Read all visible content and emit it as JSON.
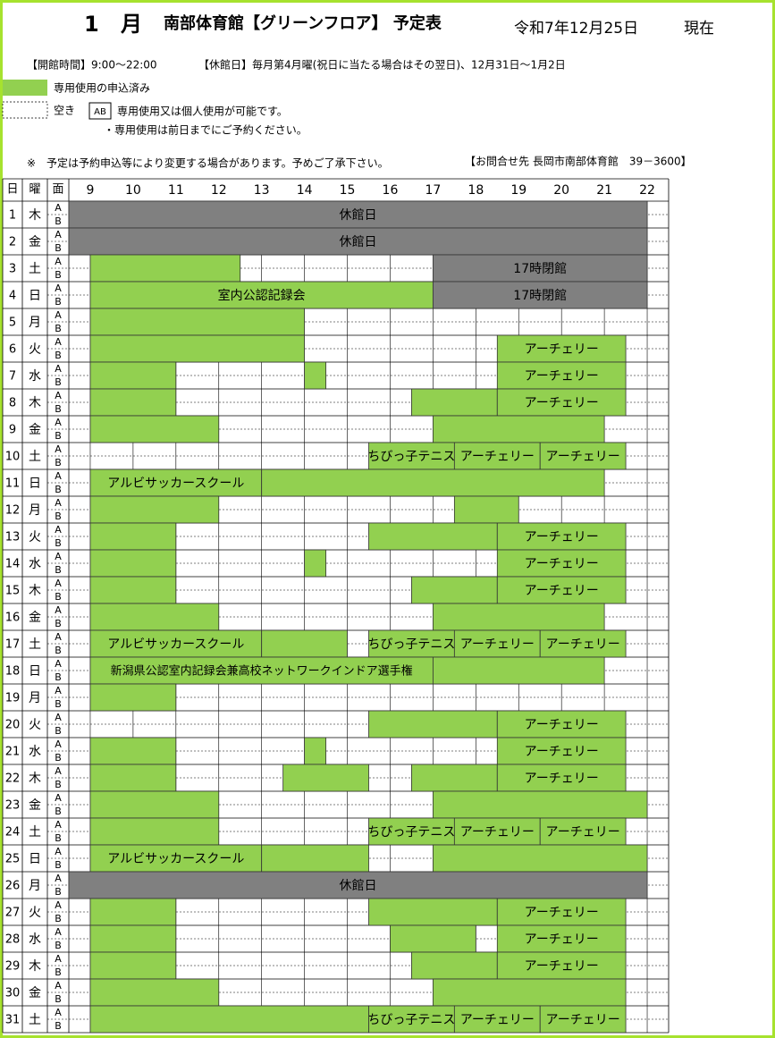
{
  "header": {
    "month": "1",
    "month_unit": "月",
    "title": "南部体育館【グリーンフロア】 予定表",
    "date": "令和7年12月25日",
    "as_of": "現在",
    "hours_info": "【開館時間】9:00～22:00",
    "closed_info": "【休館日】毎月第4月曜(祝日に当たる場合はその翌日)、12月31日～1月2日"
  },
  "legend": {
    "booked": "専用使用の申込済み",
    "free": "空き",
    "ab": "AB",
    "ab_text": "専用使用又は個人使用が可能です。",
    "reserve_note": "・専用使用は前日までにご予約ください。"
  },
  "note": "※　予定は予約申込等により変更する場合があります。予めご了承下さい。",
  "contact": "【お問合せ先 長岡市南部体育館　39－3600】",
  "table": {
    "col_day": "日",
    "col_weekday": "曜",
    "col_court": "面",
    "courts": [
      "A",
      "B"
    ],
    "hours": [
      9,
      10,
      11,
      12,
      13,
      14,
      15,
      16,
      17,
      18,
      19,
      20,
      21,
      22
    ],
    "xlim": [
      8.5,
      22.5
    ],
    "booked_color": "#92d050",
    "closed_color": "#808080",
    "days": [
      {
        "day": 1,
        "weekday": "木",
        "blocks": [
          {
            "start": 8.5,
            "end": 22,
            "label": "休館日",
            "closed": true
          }
        ]
      },
      {
        "day": 2,
        "weekday": "金",
        "blocks": [
          {
            "start": 8.5,
            "end": 22,
            "label": "休館日",
            "closed": true
          }
        ]
      },
      {
        "day": 3,
        "weekday": "土",
        "blocks": [
          {
            "start": 9,
            "end": 12.5
          },
          {
            "start": 17,
            "end": 22,
            "label": "17時閉館",
            "closed": true
          }
        ]
      },
      {
        "day": 4,
        "weekday": "日",
        "blocks": [
          {
            "start": 9,
            "end": 17,
            "label": "室内公認記録会"
          },
          {
            "start": 17,
            "end": 22,
            "label": "17時閉館",
            "closed": true
          }
        ]
      },
      {
        "day": 5,
        "weekday": "月",
        "blocks": [
          {
            "start": 9,
            "end": 14
          }
        ]
      },
      {
        "day": 6,
        "weekday": "火",
        "blocks": [
          {
            "start": 9,
            "end": 14
          },
          {
            "start": 18.5,
            "end": 21.5,
            "label": "アーチェリー"
          }
        ]
      },
      {
        "day": 7,
        "weekday": "水",
        "blocks": [
          {
            "start": 9,
            "end": 11
          },
          {
            "start": 14,
            "end": 14.5
          },
          {
            "start": 18.5,
            "end": 21.5,
            "label": "アーチェリー"
          }
        ]
      },
      {
        "day": 8,
        "weekday": "木",
        "blocks": [
          {
            "start": 9,
            "end": 11
          },
          {
            "start": 16.5,
            "end": 18.5
          },
          {
            "start": 18.5,
            "end": 21.5,
            "label": "アーチェリー"
          }
        ]
      },
      {
        "day": 9,
        "weekday": "金",
        "blocks": [
          {
            "start": 9,
            "end": 12
          },
          {
            "start": 17,
            "end": 21
          }
        ]
      },
      {
        "day": 10,
        "weekday": "土",
        "blocks": [
          {
            "start": 15.5,
            "end": 17.5,
            "label": "ちびっ子テニス"
          },
          {
            "start": 17.5,
            "end": 19.5,
            "label": "アーチェリー"
          },
          {
            "start": 19.5,
            "end": 21.5,
            "label": "アーチェリー"
          }
        ]
      },
      {
        "day": 11,
        "weekday": "日",
        "blocks": [
          {
            "start": 9,
            "end": 13,
            "label": "アルビサッカースクール"
          },
          {
            "start": 13,
            "end": 21
          }
        ]
      },
      {
        "day": 12,
        "weekday": "月",
        "blocks": [
          {
            "start": 9,
            "end": 12
          },
          {
            "start": 17.5,
            "end": 19
          }
        ]
      },
      {
        "day": 13,
        "weekday": "火",
        "blocks": [
          {
            "start": 9,
            "end": 11
          },
          {
            "start": 15.5,
            "end": 18.5
          },
          {
            "start": 18.5,
            "end": 21.5,
            "label": "アーチェリー"
          }
        ]
      },
      {
        "day": 14,
        "weekday": "水",
        "blocks": [
          {
            "start": 9,
            "end": 11
          },
          {
            "start": 14,
            "end": 14.5
          },
          {
            "start": 18.5,
            "end": 21.5,
            "label": "アーチェリー"
          }
        ]
      },
      {
        "day": 15,
        "weekday": "木",
        "blocks": [
          {
            "start": 9,
            "end": 11
          },
          {
            "start": 16.5,
            "end": 18.5
          },
          {
            "start": 18.5,
            "end": 21.5,
            "label": "アーチェリー"
          }
        ]
      },
      {
        "day": 16,
        "weekday": "金",
        "blocks": [
          {
            "start": 9,
            "end": 12
          },
          {
            "start": 17,
            "end": 21
          }
        ]
      },
      {
        "day": 17,
        "weekday": "土",
        "blocks": [
          {
            "start": 9,
            "end": 13,
            "label": "アルビサッカースクール"
          },
          {
            "start": 13,
            "end": 15
          },
          {
            "start": 15.5,
            "end": 17.5,
            "label": "ちびっ子テニス"
          },
          {
            "start": 17.5,
            "end": 19.5,
            "label": "アーチェリー"
          },
          {
            "start": 19.5,
            "end": 21.5,
            "label": "アーチェリー"
          }
        ]
      },
      {
        "day": 18,
        "weekday": "日",
        "blocks": [
          {
            "start": 9,
            "end": 17,
            "label": "新潟県公認室内記録会兼高校ネットワークインドア選手権"
          },
          {
            "start": 17,
            "end": 21
          }
        ]
      },
      {
        "day": 19,
        "weekday": "月",
        "blocks": [
          {
            "start": 9,
            "end": 11
          }
        ]
      },
      {
        "day": 20,
        "weekday": "火",
        "blocks": [
          {
            "start": 15.5,
            "end": 18.5
          },
          {
            "start": 18.5,
            "end": 21.5,
            "label": "アーチェリー"
          }
        ]
      },
      {
        "day": 21,
        "weekday": "水",
        "blocks": [
          {
            "start": 9,
            "end": 11
          },
          {
            "start": 14,
            "end": 14.5
          },
          {
            "start": 18.5,
            "end": 21.5,
            "label": "アーチェリー"
          }
        ]
      },
      {
        "day": 22,
        "weekday": "木",
        "blocks": [
          {
            "start": 9,
            "end": 11
          },
          {
            "start": 13.5,
            "end": 15.5
          },
          {
            "start": 16.5,
            "end": 18.5
          },
          {
            "start": 18.5,
            "end": 21.5,
            "label": "アーチェリー"
          }
        ]
      },
      {
        "day": 23,
        "weekday": "金",
        "blocks": [
          {
            "start": 9,
            "end": 12
          },
          {
            "start": 17,
            "end": 22
          }
        ]
      },
      {
        "day": 24,
        "weekday": "土",
        "blocks": [
          {
            "start": 9,
            "end": 12
          },
          {
            "start": 15.5,
            "end": 17.5,
            "label": "ちびっ子テニス"
          },
          {
            "start": 17.5,
            "end": 19.5,
            "label": "アーチェリー"
          },
          {
            "start": 19.5,
            "end": 21.5,
            "label": "アーチェリー"
          }
        ]
      },
      {
        "day": 25,
        "weekday": "日",
        "blocks": [
          {
            "start": 9,
            "end": 13,
            "label": "アルビサッカースクール"
          },
          {
            "start": 13,
            "end": 15.5
          },
          {
            "start": 17,
            "end": 22
          }
        ]
      },
      {
        "day": 26,
        "weekday": "月",
        "blocks": [
          {
            "start": 8.5,
            "end": 22,
            "label": "休館日",
            "closed": true
          }
        ]
      },
      {
        "day": 27,
        "weekday": "火",
        "blocks": [
          {
            "start": 9,
            "end": 11
          },
          {
            "start": 15.5,
            "end": 18.5
          },
          {
            "start": 18.5,
            "end": 21.5,
            "label": "アーチェリー"
          }
        ]
      },
      {
        "day": 28,
        "weekday": "水",
        "blocks": [
          {
            "start": 9,
            "end": 11
          },
          {
            "start": 16,
            "end": 18
          },
          {
            "start": 18.5,
            "end": 21.5,
            "label": "アーチェリー"
          }
        ]
      },
      {
        "day": 29,
        "weekday": "木",
        "blocks": [
          {
            "start": 9,
            "end": 11
          },
          {
            "start": 16.5,
            "end": 18.5
          },
          {
            "start": 18.5,
            "end": 21.5,
            "label": "アーチェリー"
          }
        ]
      },
      {
        "day": 30,
        "weekday": "金",
        "blocks": [
          {
            "start": 9,
            "end": 12
          },
          {
            "start": 17,
            "end": 21.5
          }
        ]
      },
      {
        "day": 31,
        "weekday": "土",
        "blocks": [
          {
            "start": 9,
            "end": 15.5
          },
          {
            "start": 15.5,
            "end": 17.5,
            "label": "ちびっ子テニス"
          },
          {
            "start": 17.5,
            "end": 19.5,
            "label": "アーチェリー"
          },
          {
            "start": 19.5,
            "end": 21.5,
            "label": "アーチェリー"
          }
        ]
      }
    ]
  }
}
